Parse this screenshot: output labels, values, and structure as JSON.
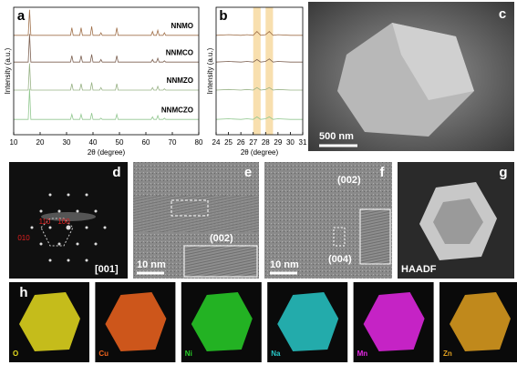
{
  "chart_data": [
    {
      "type": "line",
      "panel": "a",
      "x_label": "2θ (degree)",
      "y_label": "Intensity (a.u.)",
      "x": [
        10,
        15.5,
        16,
        16.5,
        31.5,
        32,
        32.5,
        35,
        35.5,
        36,
        39,
        39.5,
        40,
        42.5,
        43,
        43.5,
        48.5,
        49,
        49.5,
        62,
        62.5,
        63,
        64,
        64.5,
        65,
        66.5,
        67,
        67.5,
        80
      ],
      "xlim": [
        10,
        80
      ],
      "xticks": [
        10,
        20,
        30,
        40,
        50,
        60,
        70,
        80
      ],
      "ylim": [
        0,
        100
      ],
      "series": [
        {
          "name": "NNMO",
          "color": "#a0704a",
          "values": [
            78,
            78,
            98,
            78,
            78,
            84,
            78,
            78,
            84,
            78,
            78,
            85,
            78,
            78,
            80,
            78,
            78,
            84,
            78,
            78,
            81,
            78,
            78,
            82,
            78,
            78,
            80,
            78,
            78
          ]
        },
        {
          "name": "NNMCO",
          "color": "#7d6152",
          "values": [
            57,
            57,
            79,
            57,
            57,
            62,
            57,
            57,
            62,
            57,
            57,
            63,
            57,
            57,
            59,
            57,
            57,
            62,
            57,
            57,
            59,
            57,
            57,
            60,
            57,
            57,
            58,
            57,
            57
          ]
        },
        {
          "name": "NNMZO",
          "color": "#98b285",
          "values": [
            35,
            35,
            56,
            35,
            35,
            40,
            35,
            35,
            40,
            35,
            35,
            41,
            35,
            35,
            37,
            35,
            35,
            40,
            35,
            35,
            37,
            35,
            35,
            38,
            35,
            35,
            36,
            35,
            35
          ]
        },
        {
          "name": "NNMCZO",
          "color": "#92c890",
          "values": [
            12,
            12,
            36,
            12,
            12,
            16,
            12,
            12,
            16,
            12,
            12,
            17,
            12,
            12,
            13,
            12,
            12,
            16,
            12,
            12,
            14,
            12,
            12,
            15,
            12,
            12,
            13,
            12,
            12
          ]
        }
      ]
    },
    {
      "type": "line",
      "panel": "b",
      "x_label": "2θ (degree)",
      "y_label": "Intensity (a.u.)",
      "x": [
        24,
        25,
        26,
        26.5,
        27,
        27.3,
        27.6,
        28,
        28.3,
        28.6,
        29,
        30,
        31
      ],
      "xlim": [
        24,
        31
      ],
      "xticks": [
        24,
        25,
        26,
        27,
        28,
        29,
        30,
        31
      ],
      "ylim": [
        0,
        100
      ],
      "highlights": [
        [
          27.0,
          27.6
        ],
        [
          28.0,
          28.6
        ]
      ],
      "highlight_color": "#f8dfae",
      "series": [
        {
          "color": "#a0704a",
          "values": [
            78,
            78.5,
            78,
            78.5,
            78,
            81,
            78,
            78.5,
            81,
            78,
            78.5,
            78,
            78
          ]
        },
        {
          "color": "#7d6152",
          "values": [
            57,
            57.5,
            57,
            57.5,
            57,
            59,
            57,
            57.5,
            59.5,
            57,
            57.5,
            57,
            57
          ]
        },
        {
          "color": "#98b285",
          "values": [
            35,
            35.5,
            35,
            35.5,
            35,
            37,
            35,
            35.5,
            37,
            35,
            35.5,
            35,
            35
          ]
        },
        {
          "color": "#92c890",
          "values": [
            12,
            12.5,
            12,
            12.5,
            12,
            14,
            12,
            12.5,
            14,
            12,
            12.5,
            12,
            12
          ]
        }
      ]
    }
  ],
  "panel_c": {
    "label": "c",
    "scale": "500 nm"
  },
  "panel_d": {
    "label": "d",
    "spots": [
      "110",
      "100",
      "010"
    ],
    "zone": "[001]"
  },
  "panel_e": {
    "label": "e",
    "plane": "(002)",
    "scale": "10 nm"
  },
  "panel_f": {
    "label": "f",
    "planes": [
      "(002)",
      "(004)"
    ],
    "scale": "10 nm"
  },
  "panel_g": {
    "label": "g",
    "mode": "HAADF"
  },
  "panel_h": {
    "label": "h",
    "elements": [
      {
        "name": "O",
        "color": "#e6dc1e"
      },
      {
        "name": "Cu",
        "color": "#f0641e"
      },
      {
        "name": "Ni",
        "color": "#28d028"
      },
      {
        "name": "Na",
        "color": "#28c8c8"
      },
      {
        "name": "Mn",
        "color": "#e628e6"
      },
      {
        "name": "Zn",
        "color": "#e0a020"
      }
    ]
  }
}
